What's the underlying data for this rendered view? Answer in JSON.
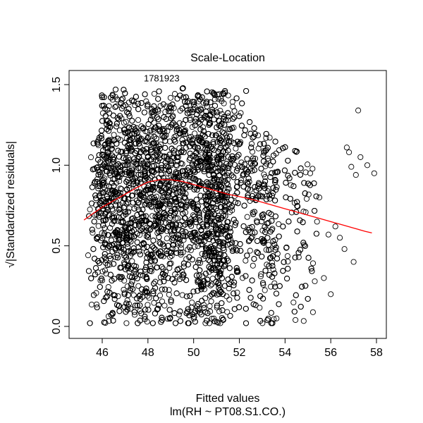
{
  "chart_data": {
    "type": "scatter",
    "title": "Scale-Location",
    "xlabel": "Fitted values",
    "sublabel": "lm(RH ~ PT08.S1.CO.)",
    "ylabel": "√|Standardized residuals|",
    "xlim": [
      45.0,
      58.0
    ],
    "ylim": [
      0.0,
      1.6
    ],
    "x_ticks": [
      46,
      48,
      50,
      52,
      54,
      56,
      58
    ],
    "y_ticks": [
      0.0,
      0.5,
      1.0,
      1.5
    ],
    "x_tick_labels": [
      "46",
      "48",
      "50",
      "52",
      "54",
      "56",
      "58"
    ],
    "y_tick_labels": [
      "0.0",
      "0.5",
      "1.0",
      "1.5"
    ],
    "grid": false,
    "annotation": "1781923",
    "point_color": "#000000",
    "smooth_color": "#ff0000",
    "smooth_line": {
      "x": [
        45.2,
        45.6,
        46.0,
        46.5,
        47.0,
        47.5,
        48.0,
        48.5,
        49.0,
        49.5,
        50.0,
        50.5,
        51.0,
        51.5,
        52.0,
        52.5,
        53.0,
        53.5,
        54.0,
        54.5,
        55.0,
        55.5,
        56.0,
        56.5,
        57.0,
        57.5,
        57.8
      ],
      "y": [
        0.66,
        0.7,
        0.74,
        0.78,
        0.82,
        0.86,
        0.895,
        0.91,
        0.91,
        0.9,
        0.88,
        0.86,
        0.84,
        0.82,
        0.805,
        0.79,
        0.77,
        0.75,
        0.73,
        0.71,
        0.69,
        0.67,
        0.65,
        0.63,
        0.61,
        0.59,
        0.58
      ]
    },
    "outlier_points": {
      "x": [
        56.7,
        56.8,
        57.2,
        57.3,
        57.6,
        57.9,
        56.2,
        55.9,
        57.0,
        56.4,
        55.7,
        55.1,
        56.0,
        57.1,
        55.3,
        56.6,
        55.5,
        54.6,
        55.4,
        56.9
      ],
      "y": [
        1.11,
        1.08,
        1.34,
        1.05,
        1.0,
        0.95,
        0.62,
        0.57,
        0.4,
        0.55,
        0.3,
        0.95,
        0.2,
        0.94,
        0.28,
        0.48,
        0.8,
        0.43,
        0.65,
        0.99
      ]
    },
    "cloud_description": "Dense cloud of thousands of points mostly between fitted values 45.3 and 55, densest around 47–51; top edge near 1.5, thinning to the right"
  }
}
